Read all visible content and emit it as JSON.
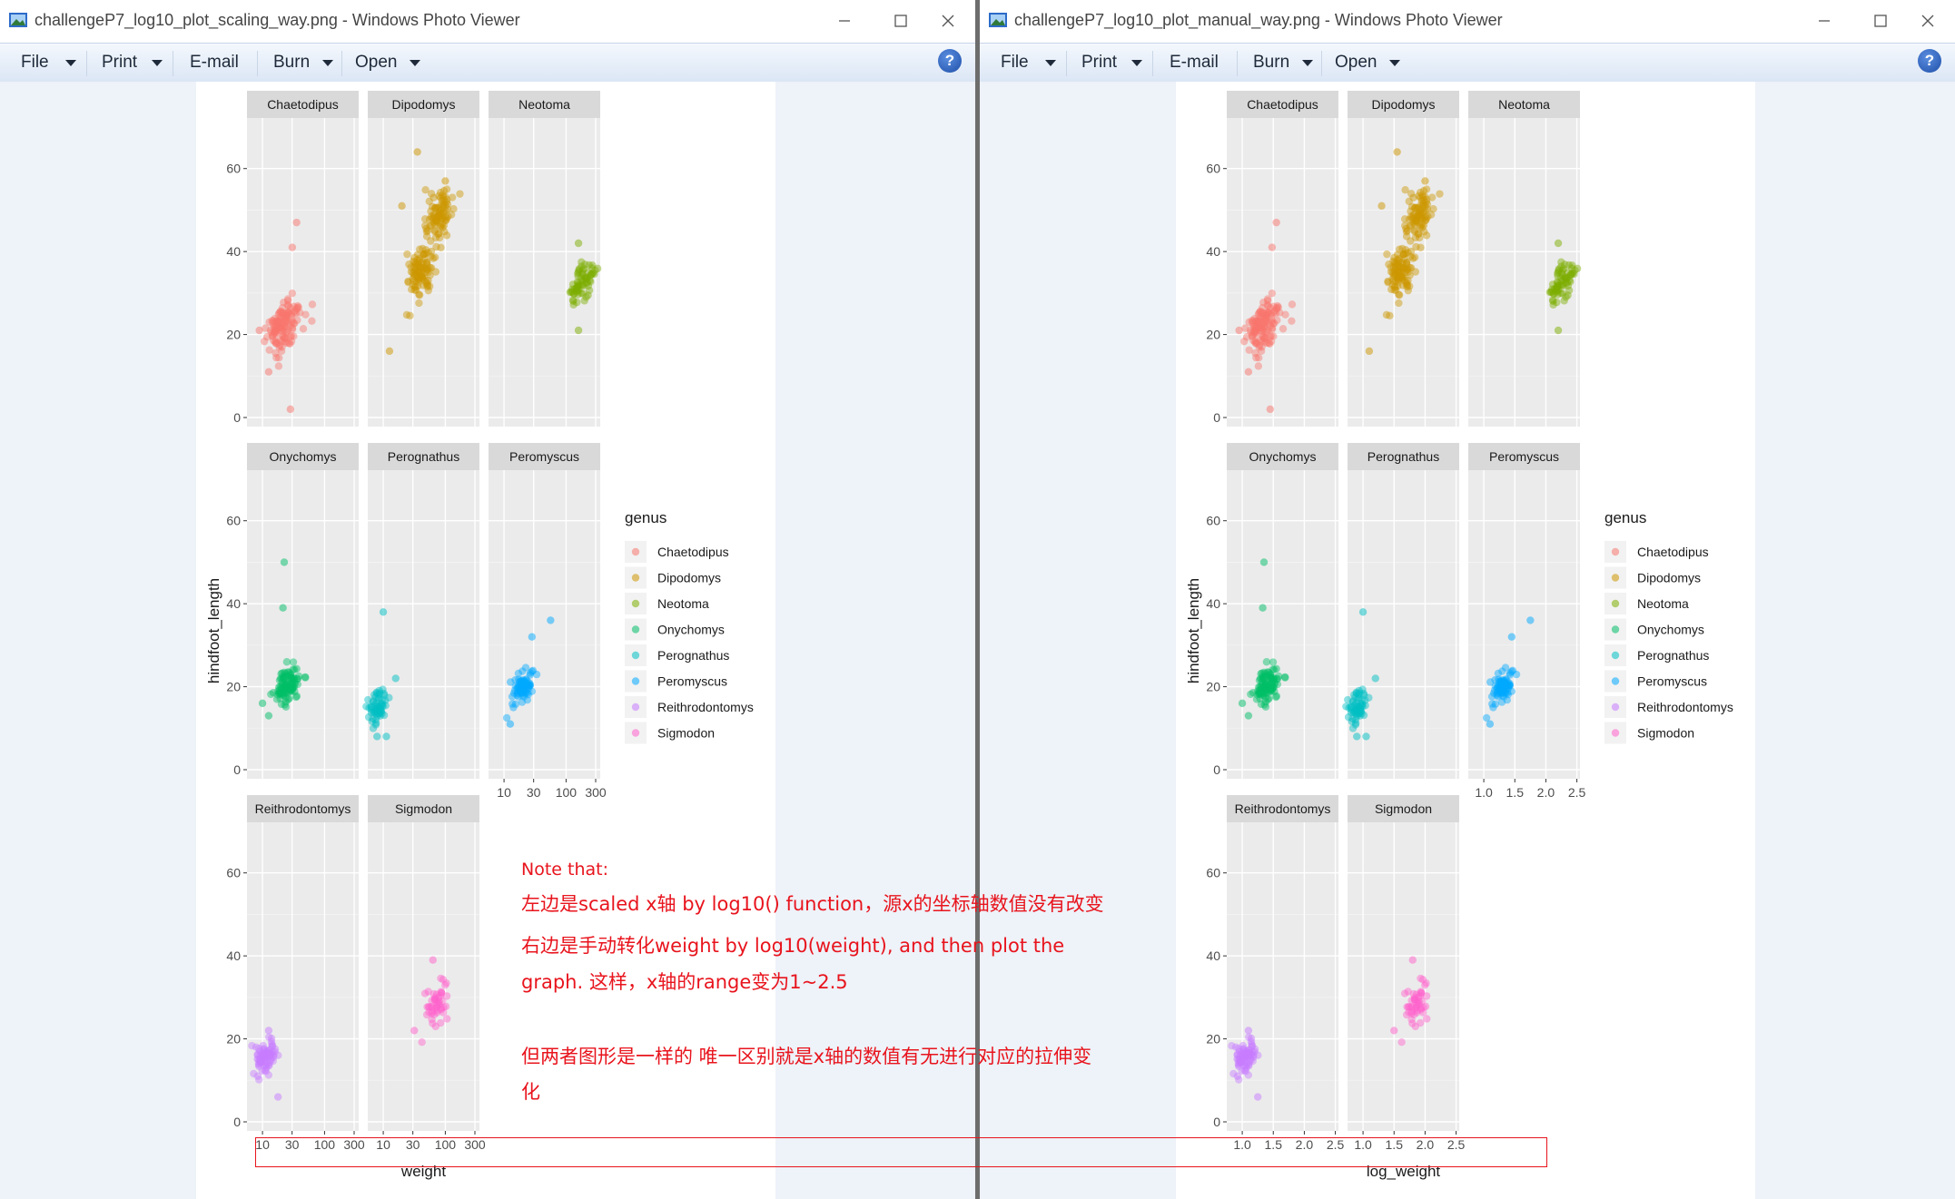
{
  "windows": [
    {
      "title": "challengeP7_log10_plot_scaling_way.png - Windows Photo Viewer",
      "menu": [
        "File",
        "Print",
        "E-mail",
        "Burn",
        "Open"
      ],
      "x_ticks": [
        "10",
        "30",
        "100",
        "300"
      ],
      "x_label": "weight"
    },
    {
      "title": "challengeP7_log10_plot_manual_way.png - Windows Photo Viewer",
      "menu": [
        "File",
        "Print",
        "E-mail",
        "Burn",
        "Open"
      ],
      "x_ticks": [
        "1.0",
        "1.5",
        "2.0",
        "2.5"
      ],
      "x_label": "log_weight"
    }
  ],
  "help_glyph": "?",
  "chart_data": {
    "type": "scatter",
    "facet_by": "genus",
    "y_label": "hindfoot_length",
    "y_ticks": [
      "0",
      "20",
      "40",
      "60"
    ],
    "ylim": [
      0,
      70
    ],
    "legend": {
      "title": "genus",
      "placement": "right",
      "items": [
        "Chaetodipus",
        "Dipodomys",
        "Neotoma",
        "Onychomys",
        "Perognathus",
        "Peromyscus",
        "Reithrodontomys",
        "Sigmodon"
      ]
    },
    "colors": {
      "Chaetodipus": "#F8766D",
      "Dipodomys": "#CD9600",
      "Neotoma": "#7CAE00",
      "Onychomys": "#00BE67",
      "Perognathus": "#00BFC4",
      "Peromyscus": "#00A9FF",
      "Reithrodontomys": "#C77CFF",
      "Sigmodon": "#FF61CC"
    },
    "panels": [
      {
        "name": "Chaetodipus",
        "clusters": [
          {
            "log_weight": 1.32,
            "hindfoot": 22,
            "spread_x": 0.13,
            "spread_y": 3.0,
            "n": 130
          }
        ],
        "outliers": [
          [
            1.55,
            47
          ],
          [
            1.48,
            41
          ],
          [
            1.1,
            11
          ],
          [
            1.45,
            2
          ],
          [
            0.95,
            21
          ]
        ]
      },
      {
        "name": "Dipodomys",
        "clusters": [
          {
            "log_weight": 1.6,
            "hindfoot": 35,
            "spread_x": 0.11,
            "spread_y": 3.2,
            "n": 100
          },
          {
            "log_weight": 1.9,
            "hindfoot": 49,
            "spread_x": 0.1,
            "spread_y": 3.2,
            "n": 90
          }
        ],
        "outliers": [
          [
            1.55,
            64
          ],
          [
            1.1,
            16
          ],
          [
            1.3,
            51
          ],
          [
            2.0,
            57
          ]
        ]
      },
      {
        "name": "Neotoma",
        "clusters": [
          {
            "log_weight": 2.25,
            "hindfoot": 32,
            "spread_x": 0.1,
            "spread_y": 2.2,
            "n": 70
          }
        ],
        "outliers": [
          [
            2.2,
            42
          ],
          [
            2.2,
            21
          ]
        ]
      },
      {
        "name": "Onychomys",
        "clusters": [
          {
            "log_weight": 1.4,
            "hindfoot": 20.5,
            "spread_x": 0.1,
            "spread_y": 2.0,
            "n": 100
          }
        ],
        "outliers": [
          [
            1.35,
            50
          ],
          [
            1.33,
            39
          ],
          [
            1.0,
            16
          ],
          [
            1.1,
            13
          ]
        ]
      },
      {
        "name": "Perognathus",
        "clusters": [
          {
            "log_weight": 0.9,
            "hindfoot": 15,
            "spread_x": 0.08,
            "spread_y": 2.0,
            "n": 60
          }
        ],
        "outliers": [
          [
            1.0,
            38
          ],
          [
            0.9,
            8
          ],
          [
            1.05,
            8
          ],
          [
            1.2,
            22
          ]
        ]
      },
      {
        "name": "Peromyscus",
        "clusters": [
          {
            "log_weight": 1.3,
            "hindfoot": 20,
            "spread_x": 0.09,
            "spread_y": 1.8,
            "n": 80
          }
        ],
        "outliers": [
          [
            1.75,
            36
          ],
          [
            1.45,
            32
          ],
          [
            1.1,
            11
          ]
        ]
      },
      {
        "name": "Reithrodontomys",
        "clusters": [
          {
            "log_weight": 1.05,
            "hindfoot": 16,
            "spread_x": 0.09,
            "spread_y": 2.0,
            "n": 80
          }
        ],
        "outliers": [
          [
            1.25,
            6
          ],
          [
            1.1,
            22
          ]
        ]
      },
      {
        "name": "Sigmodon",
        "clusters": [
          {
            "log_weight": 1.85,
            "hindfoot": 29,
            "spread_x": 0.1,
            "spread_y": 2.5,
            "n": 50
          }
        ],
        "outliers": [
          [
            1.8,
            39
          ],
          [
            1.5,
            22
          ]
        ]
      }
    ]
  },
  "annotation": {
    "lines": [
      "Note that:",
      "左边是scaled x轴 by log10() function，源x的坐标轴数值没有改变",
      "右边是手动转化weight by log10(weight), and then plot the",
      "graph. 这样，x轴的range变为1~2.5",
      "但两者图形是一样的 唯一区别就是x轴的数值有无进行对应的拉伸变",
      "化"
    ]
  }
}
